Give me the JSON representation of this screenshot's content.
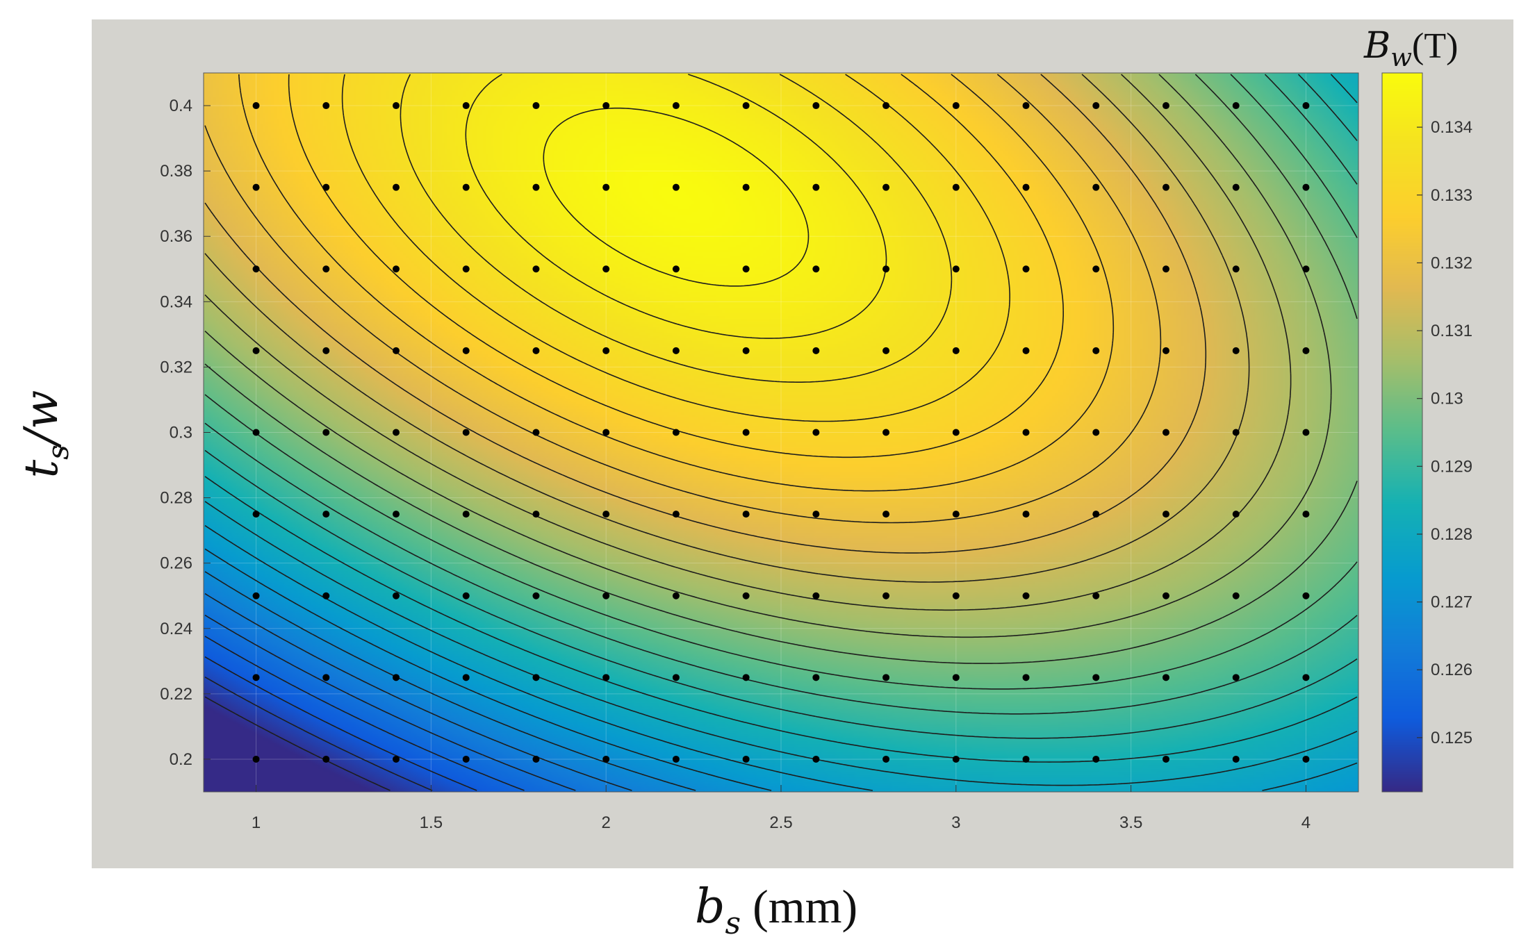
{
  "chart_data": {
    "type": "heatmap",
    "subtype": "contour-with-sample-points",
    "x": {
      "label_symbol": "b",
      "label_subscript": "s",
      "label_unit": " (mm)",
      "range": [
        0.85,
        4.15
      ],
      "ticks": [
        1,
        1.5,
        2,
        2.5,
        3,
        3.5,
        4
      ],
      "tick_labels": [
        "1",
        "1.5",
        "2",
        "2.5",
        "3",
        "3.5",
        "4"
      ]
    },
    "y": {
      "label_symbol": "t",
      "label_subscript": "s",
      "label_suffix": "/w",
      "range": [
        0.19,
        0.41
      ],
      "ticks": [
        0.2,
        0.22,
        0.24,
        0.26,
        0.28,
        0.3,
        0.32,
        0.34,
        0.36,
        0.38,
        0.4
      ],
      "tick_labels": [
        "0.2",
        "0.22",
        "0.24",
        "0.26",
        "0.28",
        "0.3",
        "0.32",
        "0.34",
        "0.36",
        "0.38",
        "0.4"
      ]
    },
    "colorbar": {
      "title_symbol": "B",
      "title_subscript": "w",
      "title_unit": "(T)",
      "range": [
        0.1242,
        0.1348
      ],
      "ticks": [
        0.125,
        0.126,
        0.127,
        0.128,
        0.129,
        0.13,
        0.131,
        0.132,
        0.133,
        0.134
      ],
      "tick_labels": [
        "0.125",
        "0.126",
        "0.127",
        "0.128",
        "0.129",
        "0.13",
        "0.131",
        "0.132",
        "0.133",
        "0.134"
      ],
      "colormap": "parula"
    },
    "field": {
      "peak": {
        "x": 2.2,
        "y": 0.372,
        "value": 0.1348
      },
      "min_value": 0.1242
    },
    "sample_points": {
      "x": [
        1,
        1.2,
        1.4,
        1.6,
        1.8,
        2,
        2.2,
        2.4,
        2.6,
        2.8,
        3,
        3.2,
        3.4,
        3.6,
        3.8,
        4
      ],
      "y": [
        0.2,
        0.225,
        0.25,
        0.275,
        0.3,
        0.325,
        0.35,
        0.375,
        0.4
      ]
    },
    "contour_levels": {
      "first": 0.1244,
      "step": 0.0004,
      "count": 27
    },
    "grid": true
  }
}
